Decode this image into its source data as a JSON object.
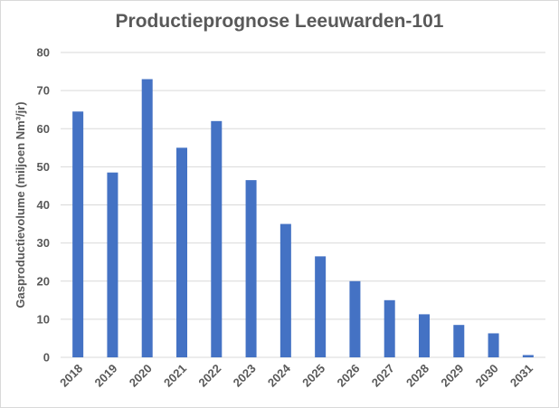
{
  "chart_data": {
    "type": "bar",
    "title": "Productieprognose Leeuwarden-101",
    "xlabel": "",
    "ylabel": "Gasproductievolume (miljoen Nm³/jr)",
    "categories": [
      "2018",
      "2019",
      "2020",
      "2021",
      "2022",
      "2023",
      "2024",
      "2025",
      "2026",
      "2027",
      "2028",
      "2029",
      "2030",
      "2031"
    ],
    "values": [
      64.5,
      48.5,
      73,
      55,
      62,
      46.5,
      35,
      26.5,
      20,
      15,
      11.3,
      8.5,
      6.3,
      0.6
    ],
    "ylim": [
      0,
      80
    ],
    "yticks": [
      0,
      10,
      20,
      30,
      40,
      50,
      60,
      70,
      80
    ],
    "grid": "horizontal",
    "legend": "none",
    "bar_color": "#4472c4",
    "grid_color": "#d9d9d9",
    "text_color": "#595959"
  }
}
